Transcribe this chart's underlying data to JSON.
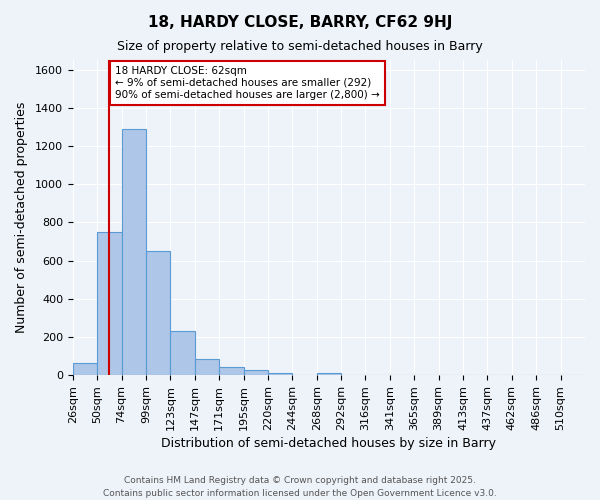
{
  "title": "18, HARDY CLOSE, BARRY, CF62 9HJ",
  "subtitle": "Size of property relative to semi-detached houses in Barry",
  "xlabel": "Distribution of semi-detached houses by size in Barry",
  "ylabel": "Number of semi-detached properties",
  "bin_labels": [
    "26sqm",
    "50sqm",
    "74sqm",
    "99sqm",
    "123sqm",
    "147sqm",
    "171sqm",
    "195sqm",
    "220sqm",
    "244sqm",
    "268sqm",
    "292sqm",
    "316sqm",
    "341sqm",
    "365sqm",
    "389sqm",
    "413sqm",
    "437sqm",
    "462sqm",
    "486sqm",
    "510sqm"
  ],
  "bar_values": [
    65,
    750,
    1290,
    650,
    230,
    85,
    45,
    25,
    12,
    0,
    10,
    0,
    0,
    0,
    0,
    0,
    0,
    0,
    0,
    0,
    0
  ],
  "bar_color": "#AEC6E8",
  "bar_edge_color": "#5B9BD5",
  "property_line_x": 62,
  "property_line_label": "18 HARDY CLOSE: 62sqm",
  "annotation_line1": "← 9% of semi-detached houses are smaller (292)",
  "annotation_line2": "90% of semi-detached houses are larger (2,800) →",
  "annotation_box_color": "#ffffff",
  "annotation_box_edge": "#cc0000",
  "red_line_color": "#cc0000",
  "ylim": [
    0,
    1650
  ],
  "yticks": [
    0,
    200,
    400,
    600,
    800,
    1000,
    1200,
    1400,
    1600
  ],
  "background_color": "#eef2f9",
  "grid_color": "#ffffff",
  "footnote1": "Contains HM Land Registry data © Crown copyright and database right 2025.",
  "footnote2": "Contains public sector information licensed under the Open Government Licence v3.0."
}
